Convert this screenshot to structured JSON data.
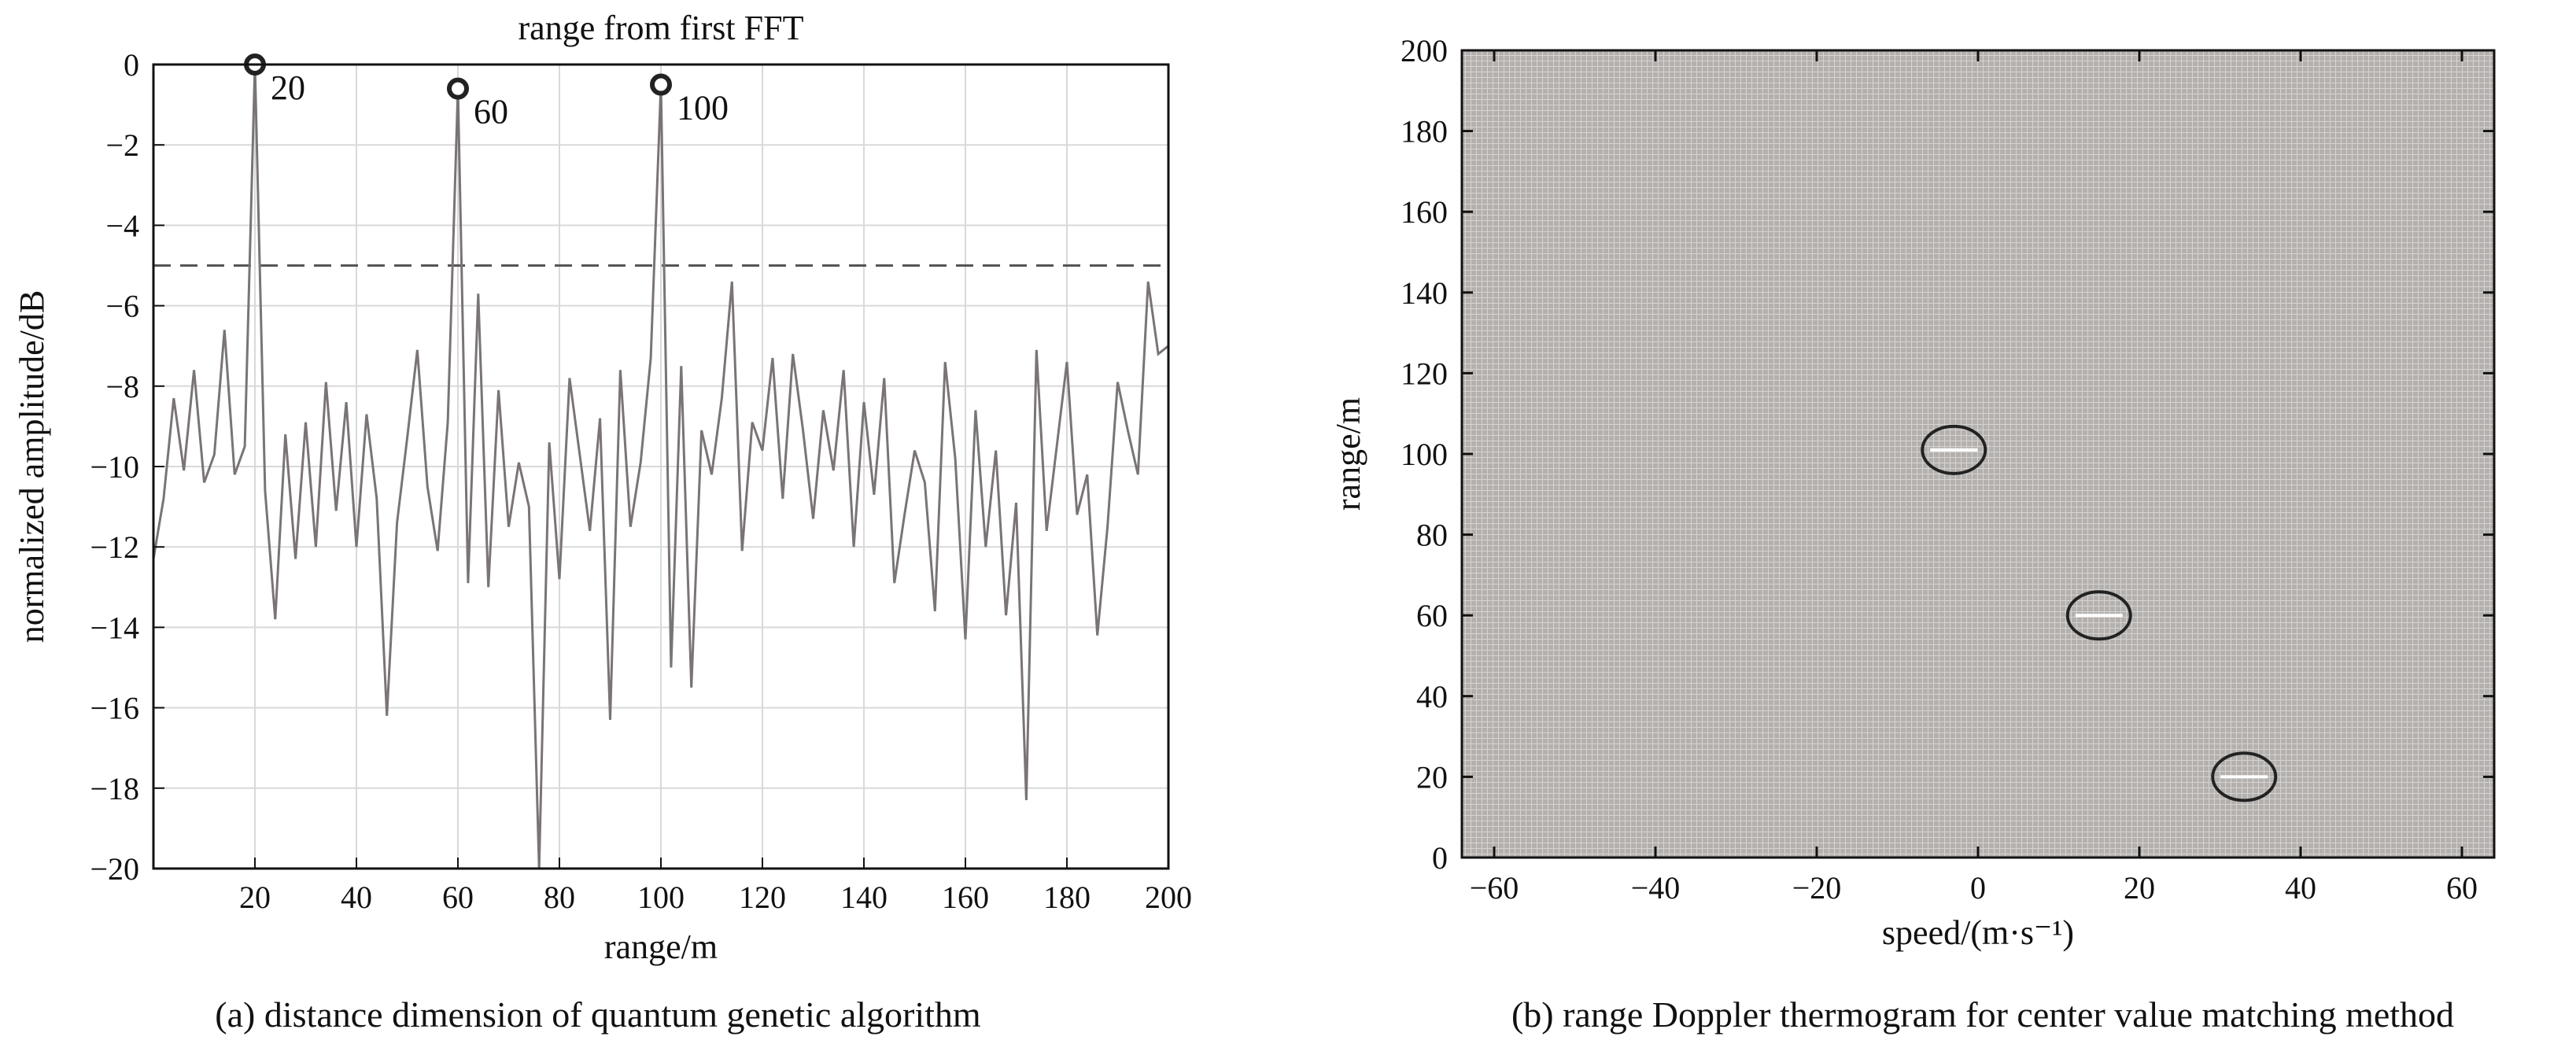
{
  "chart_data": [
    {
      "type": "line",
      "title": "range from first FFT",
      "xlabel": "range/m",
      "ylabel": "normalized amplitude/dB",
      "caption": "(a) distance dimension of quantum genetic algorithm",
      "xlim": [
        0,
        200
      ],
      "ylim": [
        -20,
        0
      ],
      "xticks": [
        20,
        40,
        60,
        80,
        100,
        120,
        140,
        160,
        180,
        200
      ],
      "yticks": [
        0,
        -2,
        -4,
        -6,
        -8,
        -10,
        -12,
        -14,
        -16,
        -18,
        -20
      ],
      "grid": true,
      "threshold": -5,
      "peaks": [
        {
          "x": 20,
          "y": 0,
          "label": "20"
        },
        {
          "x": 60,
          "y": -0.6,
          "label": "60"
        },
        {
          "x": 100,
          "y": -0.5,
          "label": "100"
        }
      ],
      "series": [
        {
          "color": "#7a7474",
          "x": [
            0,
            2,
            4,
            6,
            8,
            10,
            12,
            14,
            16,
            18,
            20,
            22,
            24,
            26,
            28,
            30,
            32,
            34,
            36,
            38,
            40,
            42,
            44,
            46,
            48,
            50,
            52,
            54,
            56,
            58,
            60,
            62,
            64,
            66,
            68,
            70,
            72,
            74,
            76,
            78,
            80,
            82,
            84,
            86,
            88,
            90,
            92,
            94,
            96,
            98,
            100,
            102,
            104,
            106,
            108,
            110,
            112,
            114,
            116,
            118,
            120,
            122,
            124,
            126,
            128,
            130,
            132,
            134,
            136,
            138,
            140,
            142,
            144,
            146,
            148,
            150,
            152,
            154,
            156,
            158,
            160,
            162,
            164,
            166,
            168,
            170,
            172,
            174,
            176,
            178,
            180,
            182,
            184,
            186,
            188,
            190,
            192,
            194,
            196,
            198,
            200
          ],
          "y": [
            -12.3,
            -10.8,
            -8.3,
            -10.1,
            -7.6,
            -10.4,
            -9.7,
            -6.6,
            -10.2,
            -9.5,
            0.0,
            -10.6,
            -13.8,
            -9.2,
            -12.3,
            -8.9,
            -12.0,
            -7.9,
            -11.1,
            -8.4,
            -12.0,
            -8.7,
            -10.8,
            -16.2,
            -11.4,
            -9.3,
            -7.1,
            -10.5,
            -12.1,
            -8.9,
            -0.6,
            -12.9,
            -5.7,
            -13.0,
            -8.1,
            -11.5,
            -9.9,
            -11.0,
            -20.0,
            -9.4,
            -12.8,
            -7.8,
            -9.7,
            -11.6,
            -8.8,
            -16.3,
            -7.6,
            -11.5,
            -9.9,
            -7.3,
            -0.5,
            -15.0,
            -7.5,
            -15.5,
            -9.1,
            -10.2,
            -8.3,
            -5.4,
            -12.1,
            -8.9,
            -9.6,
            -7.3,
            -10.8,
            -7.2,
            -9.1,
            -11.3,
            -8.6,
            -10.1,
            -7.6,
            -12.0,
            -8.4,
            -10.7,
            -7.8,
            -12.9,
            -11.2,
            -9.6,
            -10.4,
            -13.6,
            -7.4,
            -9.8,
            -14.3,
            -8.6,
            -12.0,
            -9.6,
            -13.7,
            -10.9,
            -18.3,
            -7.1,
            -11.6,
            -9.5,
            -7.4,
            -11.2,
            -10.2,
            -14.2,
            -11.5,
            -7.9,
            -9.1,
            -10.2,
            -5.4,
            -7.2,
            -7.0
          ]
        }
      ]
    },
    {
      "type": "heatmap",
      "title": "",
      "xlabel": "speed/(m·s⁻¹)",
      "ylabel": "range/m",
      "caption": "(b) range Doppler thermogram for center value matching method",
      "xlim": [
        -64,
        64
      ],
      "ylim": [
        0,
        200
      ],
      "xticks": [
        -60,
        -40,
        -20,
        0,
        20,
        40,
        60
      ],
      "yticks": [
        0,
        20,
        40,
        60,
        80,
        100,
        120,
        140,
        160,
        180,
        200
      ],
      "targets": [
        {
          "speed": -3,
          "range": 101
        },
        {
          "speed": 15,
          "range": 60
        },
        {
          "speed": 33,
          "range": 20
        }
      ]
    }
  ]
}
